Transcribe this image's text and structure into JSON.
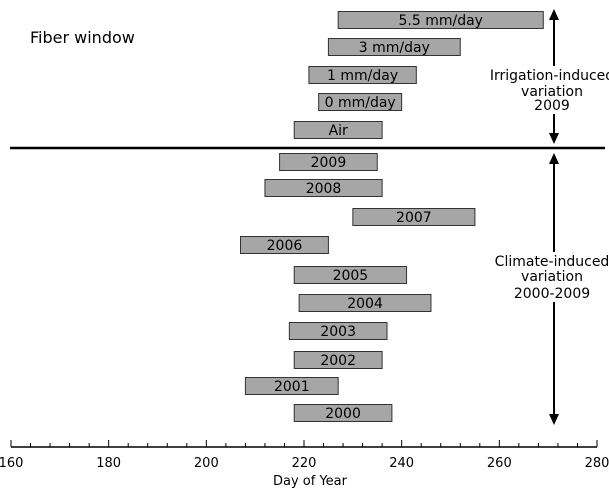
{
  "chart_data": {
    "type": "bar",
    "orientation": "horizontal-range",
    "title": "Fiber window",
    "xlabel": "Day of Year",
    "xlim": [
      160,
      280
    ],
    "xticks": [
      "160",
      "180",
      "200",
      "220",
      "240",
      "260",
      "280"
    ],
    "groups": [
      {
        "annotation": [
          "Irrigation-induced",
          "variation",
          "2009"
        ],
        "bars": [
          {
            "label": "5.5 mm/day",
            "start": 227,
            "end": 269
          },
          {
            "label": "3 mm/day",
            "start": 225,
            "end": 252
          },
          {
            "label": "1 mm/day",
            "start": 221,
            "end": 243
          },
          {
            "label": "0 mm/day",
            "start": 223,
            "end": 240
          },
          {
            "label": "Air",
            "start": 218,
            "end": 236
          }
        ]
      },
      {
        "annotation": [
          "Climate-induced",
          "variation",
          "2000-2009"
        ],
        "bars": [
          {
            "label": "2009",
            "start": 215,
            "end": 235
          },
          {
            "label": "2008",
            "start": 212,
            "end": 236
          },
          {
            "label": "2007",
            "start": 230,
            "end": 255
          },
          {
            "label": "2006",
            "start": 207,
            "end": 225
          },
          {
            "label": "2005",
            "start": 218,
            "end": 241
          },
          {
            "label": "2004",
            "start": 219,
            "end": 246
          },
          {
            "label": "2003",
            "start": 217,
            "end": 237
          },
          {
            "label": "2002",
            "start": 218,
            "end": 236
          },
          {
            "label": "2001",
            "start": 208,
            "end": 227
          },
          {
            "label": "2000",
            "start": 218,
            "end": 238
          }
        ]
      }
    ],
    "colors": {
      "bar_fill": "#a6a6a6",
      "bar_stroke": "#333333"
    }
  }
}
